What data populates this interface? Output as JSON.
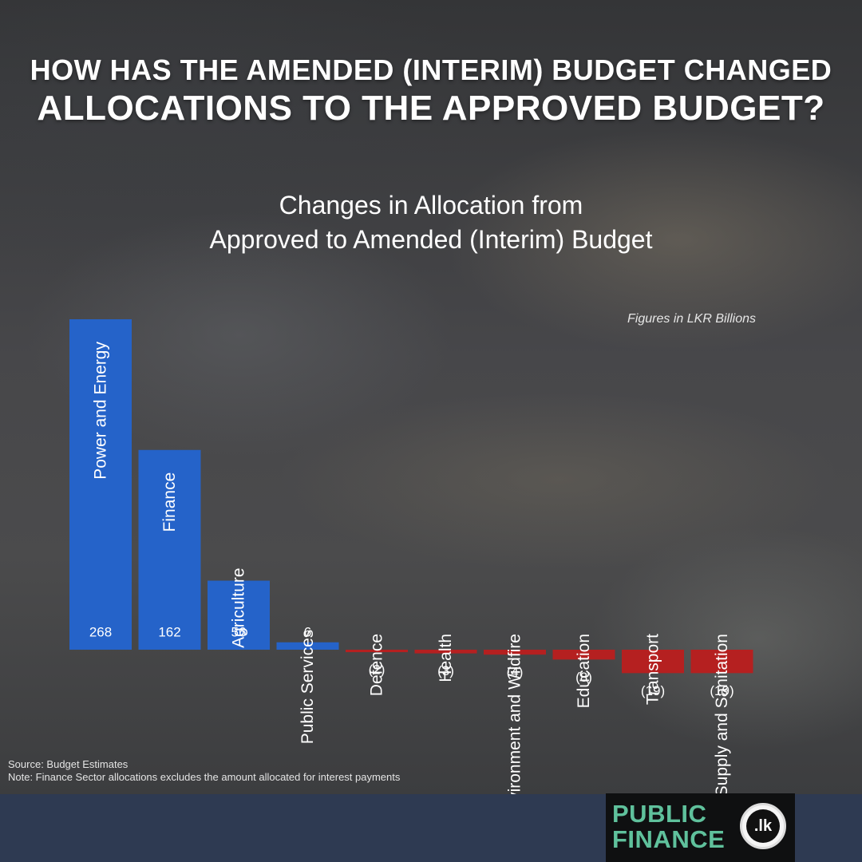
{
  "headline": {
    "line1": "HOW HAS THE AMENDED (INTERIM) BUDGET CHANGED",
    "line2": "ALLOCATIONS TO THE APPROVED BUDGET?"
  },
  "chart_data": {
    "type": "bar",
    "title_lines": [
      "Changes in Allocation from",
      "Approved to Amended (Interim) Budget"
    ],
    "units_note": "Figures in LKR Billions",
    "categories": [
      "Power and Energy",
      "Finance",
      "Agriculture",
      "Public Services",
      "Defence",
      "Health",
      "Environment and Wildfire",
      "Education",
      "Transport",
      "Water Supply and Sanitation"
    ],
    "values": [
      268,
      162,
      56,
      6,
      -2,
      -3,
      -4,
      -8,
      -19,
      -19
    ],
    "value_labels": [
      "268",
      "162",
      "56",
      "6",
      "(2)",
      "(3)",
      "(4)",
      "(8)",
      "(19)",
      "(19)"
    ],
    "ylim": [
      -19,
      268
    ],
    "grid": false,
    "legend": "none",
    "colors": {
      "positive": "#2563c9",
      "negative": "#b52020"
    }
  },
  "source": {
    "line1": "Source: Budget Estimates",
    "line2": "Note: Finance Sector allocations excludes the amount allocated for interest payments"
  },
  "logo": {
    "line1": "PUBLIC",
    "line2": "FINANCE",
    "badge": ".lk"
  }
}
